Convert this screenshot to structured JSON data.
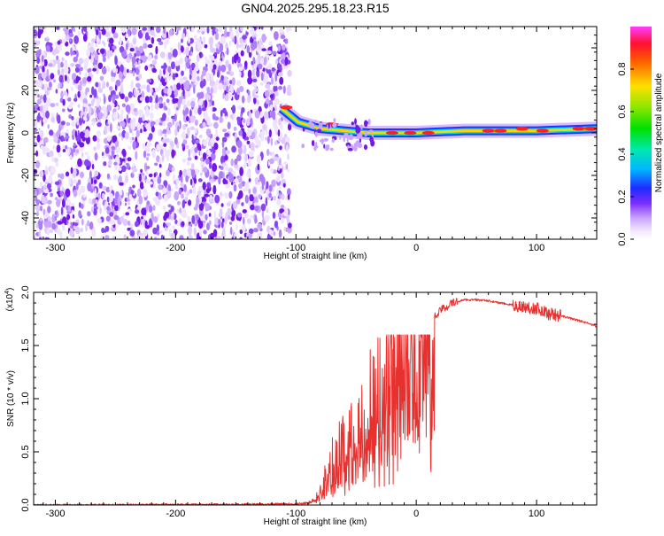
{
  "title": "GN04.2025.295.18.23.R15",
  "colors": {
    "snr_line": "#e8302e",
    "axis": "#000000"
  },
  "chart_data": [
    {
      "type": "heatmap",
      "title": "GN04.2025.295.18.23.R15",
      "xlabel": "Height of straight line (km)",
      "ylabel": "Frequency (Hz)",
      "xlim": [
        -318,
        150
      ],
      "ylim": [
        -50,
        50
      ],
      "xticks": [
        -300,
        -200,
        -100,
        0,
        100
      ],
      "yticks": [
        -40,
        -20,
        0,
        20,
        40
      ],
      "xtick_labels": [
        "-300",
        "-200",
        "-100",
        "0",
        "100"
      ],
      "ytick_labels": [
        "-40",
        "-20",
        "0",
        "20",
        "40"
      ],
      "colorbar": {
        "label": "Normalized spectral amplitude",
        "range": [
          0,
          1
        ],
        "ticks": [
          0.0,
          0.2,
          0.4,
          0.6,
          0.8
        ],
        "tick_labels": [
          "0.0",
          "0.2",
          "0.4",
          "0.6",
          "0.8"
        ]
      },
      "features": [
        {
          "name": "background noise",
          "x_range": [
            -318,
            -105
          ],
          "freq_range": [
            -50,
            50
          ],
          "amplitude": 0.1
        },
        {
          "name": "signal ridge onset",
          "x_range": [
            -112,
            -98
          ],
          "freq_range": [
            9,
            14
          ],
          "amplitude": 0.8
        },
        {
          "name": "signal ridge",
          "x": [
            -98,
            -80,
            -60,
            -40,
            -20,
            0,
            40,
            60,
            80,
            100,
            150
          ],
          "freq": [
            5,
            2,
            1,
            0,
            0,
            0,
            1,
            1,
            1,
            1,
            2
          ],
          "amplitude": 0.9
        }
      ]
    },
    {
      "type": "line",
      "xlabel": "Height of straight line (km)",
      "ylabel": "SNR (10 * v/v)",
      "y_exponent_label": "(x10",
      "y_exponent": "4",
      "y_exponent_close": ")",
      "xlim": [
        -318,
        150
      ],
      "ylim": [
        0,
        2.0
      ],
      "xticks": [
        -300,
        -200,
        -100,
        0,
        100
      ],
      "yticks": [
        0.0,
        0.5,
        1.0,
        1.5,
        2.0
      ],
      "xtick_labels": [
        "-300",
        "-200",
        "-100",
        "0",
        "100"
      ],
      "ytick_labels": [
        "0.0",
        "0.5",
        "1.0",
        "1.5",
        "2.0"
      ],
      "series": [
        {
          "name": "SNR",
          "x": [
            -318,
            -250,
            -200,
            -150,
            -100,
            -90,
            -85,
            -80,
            -70,
            -60,
            -50,
            -40,
            -30,
            -20,
            -10,
            0,
            10,
            20,
            30,
            40,
            50,
            60,
            70,
            80,
            90,
            100,
            110,
            120,
            130,
            140,
            150
          ],
          "y": [
            0.0,
            0.0,
            0.005,
            0.005,
            0.01,
            0.02,
            0.05,
            0.1,
            0.35,
            0.5,
            0.6,
            0.8,
            0.9,
            1.05,
            1.3,
            1.55,
            1.7,
            1.83,
            1.9,
            1.93,
            1.93,
            1.92,
            1.9,
            1.88,
            1.86,
            1.85,
            1.8,
            1.78,
            1.75,
            1.72,
            1.68
          ]
        }
      ]
    }
  ]
}
